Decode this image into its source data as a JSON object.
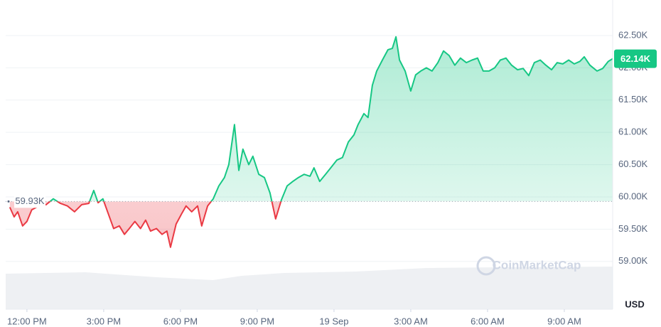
{
  "chart_data": {
    "type": "line",
    "x": [
      -0.67,
      -0.5,
      -0.36,
      -0.17,
      0,
      0.19,
      0.47,
      0.75,
      1.03,
      1.31,
      1.58,
      1.86,
      2.14,
      2.42,
      2.61,
      2.78,
      2.97,
      3.17,
      3.39,
      3.61,
      3.81,
      4.0,
      4.22,
      4.44,
      4.64,
      4.83,
      5.06,
      5.28,
      5.47,
      5.61,
      5.83,
      6.06,
      6.22,
      6.44,
      6.67,
      6.83,
      7.06,
      7.28,
      7.5,
      7.72,
      7.89,
      8.11,
      8.28,
      8.44,
      8.67,
      8.83,
      9.06,
      9.28,
      9.5,
      9.72,
      9.94,
      10.17,
      10.39,
      10.61,
      10.83,
      11.06,
      11.22,
      11.44,
      11.67,
      11.89,
      12.11,
      12.33,
      12.56,
      12.78,
      12.94,
      13.17,
      13.33,
      13.5,
      13.67,
      13.89,
      14.11,
      14.28,
      14.42,
      14.56,
      14.78,
      15.0,
      15.19,
      15.39,
      15.61,
      15.83,
      16.06,
      16.28,
      16.5,
      16.72,
      16.94,
      17.17,
      17.39,
      17.61,
      17.83,
      18.06,
      18.28,
      18.5,
      18.72,
      18.94,
      19.17,
      19.39,
      19.61,
      19.83,
      20.06,
      20.28,
      20.5,
      20.72,
      20.94,
      21.17,
      21.39,
      21.61,
      21.78,
      22.0,
      22.28,
      22.5,
      22.72,
      22.89
    ],
    "values": [
      59840,
      59690,
      59770,
      59550,
      59620,
      59800,
      59860,
      59880,
      59970,
      59900,
      59860,
      59770,
      59880,
      59900,
      60100,
      59910,
      59970,
      59750,
      59510,
      59550,
      59420,
      59510,
      59620,
      59510,
      59640,
      59470,
      59510,
      59420,
      59470,
      59220,
      59580,
      59750,
      59860,
      59770,
      59860,
      59550,
      59860,
      59970,
      60170,
      60300,
      60500,
      61120,
      60410,
      60740,
      60500,
      60630,
      60350,
      60300,
      60060,
      59660,
      59950,
      60170,
      60240,
      60300,
      60350,
      60320,
      60450,
      60240,
      60350,
      60460,
      60570,
      60610,
      60850,
      60960,
      61120,
      61290,
      61230,
      61730,
      61950,
      62120,
      62280,
      62300,
      62480,
      62120,
      61950,
      61640,
      61890,
      61950,
      62000,
      61950,
      62080,
      62260,
      62190,
      62040,
      62150,
      62080,
      62120,
      62150,
      61950,
      61950,
      62000,
      62120,
      62150,
      62040,
      61970,
      61990,
      61880,
      62080,
      62120,
      62040,
      61970,
      62080,
      62060,
      62120,
      62060,
      62100,
      62170,
      62040,
      61950,
      61990,
      62100,
      62140
    ],
    "up_color": "#16c784",
    "down_color": "#ea3943",
    "baseline": {
      "value": 59930,
      "label": "59.93K"
    },
    "last_price": {
      "value": 62140,
      "label": "62.14K"
    },
    "currency": "USD",
    "watermark": "CoinMarketCap",
    "xlim": [
      -0.83,
      22.89
    ],
    "ylim": [
      58260,
      63050
    ],
    "xticks": [
      {
        "value": 0,
        "label": "12:00 PM"
      },
      {
        "value": 3,
        "label": "3:00 PM"
      },
      {
        "value": 6,
        "label": "6:00 PM"
      },
      {
        "value": 9,
        "label": "9:00 PM"
      },
      {
        "value": 12,
        "label": "19 Sep"
      },
      {
        "value": 15,
        "label": "3:00 AM"
      },
      {
        "value": 18,
        "label": "6:00 AM"
      },
      {
        "value": 21,
        "label": "9:00 AM"
      }
    ],
    "yticks": [
      {
        "value": 59000,
        "label": "59.00K"
      },
      {
        "value": 59500,
        "label": "59.50K"
      },
      {
        "value": 60000,
        "label": "60.00K"
      },
      {
        "value": 60500,
        "label": "60.50K"
      },
      {
        "value": 61000,
        "label": "61.00K"
      },
      {
        "value": 61500,
        "label": "61.50K"
      },
      {
        "value": 62000,
        "label": "62.00K"
      },
      {
        "value": 62500,
        "label": "62.50K"
      }
    ],
    "grid": true
  }
}
